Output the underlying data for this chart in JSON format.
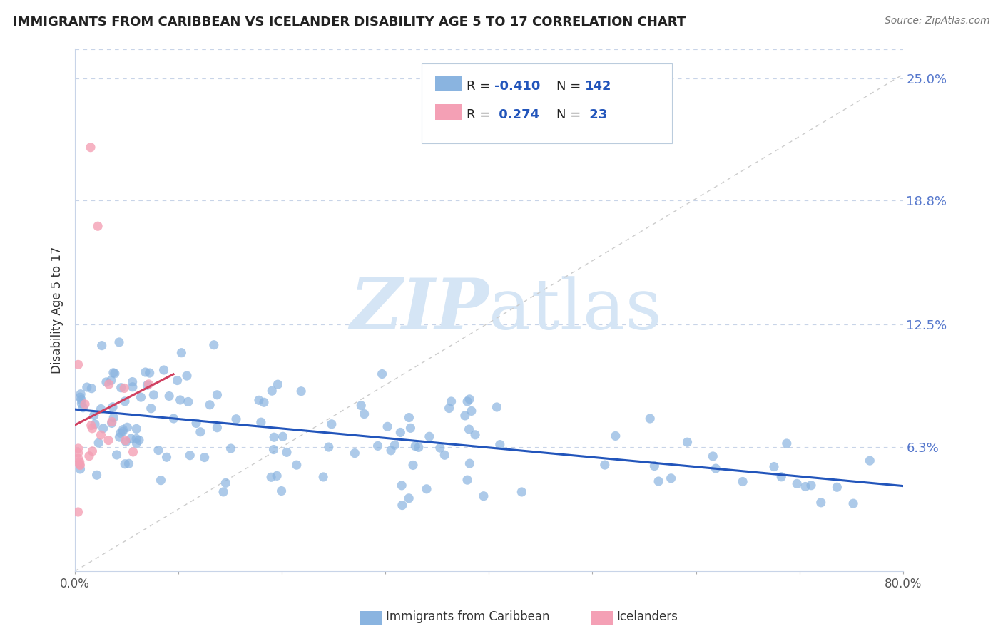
{
  "title": "IMMIGRANTS FROM CARIBBEAN VS ICELANDER DISABILITY AGE 5 TO 17 CORRELATION CHART",
  "source": "Source: ZipAtlas.com",
  "ylabel": "Disability Age 5 to 17",
  "xlim": [
    0.0,
    0.8
  ],
  "ylim": [
    0.0,
    0.265
  ],
  "ytick_positions": [
    0.0,
    0.063,
    0.125,
    0.188,
    0.25
  ],
  "ytick_labels": [
    "",
    "6.3%",
    "12.5%",
    "18.8%",
    "25.0%"
  ],
  "r_blue": -0.41,
  "n_blue": 142,
  "r_pink": 0.274,
  "n_pink": 23,
  "blue_color": "#8ab4e0",
  "pink_color": "#f4a0b5",
  "blue_line_color": "#2255bb",
  "pink_line_color": "#d04060",
  "gray_dash_color": "#cccccc",
  "title_color": "#222222",
  "value_color": "#2255bb",
  "watermark_color": "#d5e5f5",
  "legend_box_color": "#dde8f0",
  "grid_color": "#c8d4e8"
}
